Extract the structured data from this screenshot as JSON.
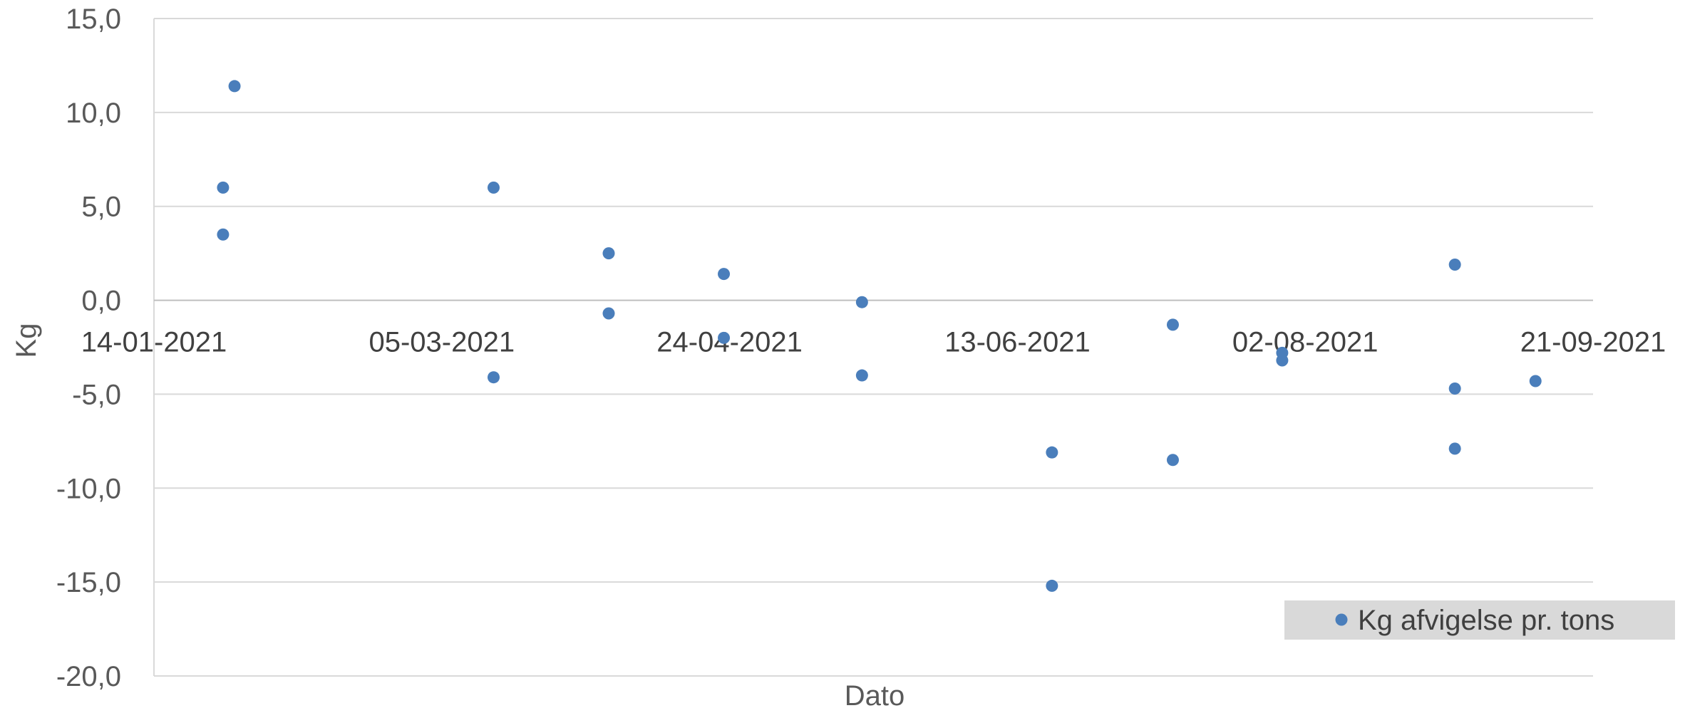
{
  "chart_data": {
    "type": "scatter",
    "xlabel": "Dato",
    "ylabel": "Kg",
    "xlim": [
      "14-01-2021",
      "21-09-2021"
    ],
    "ylim": [
      -20,
      15
    ],
    "x_ticks": [
      "14-01-2021",
      "05-03-2021",
      "24-04-2021",
      "13-06-2021",
      "02-08-2021",
      "21-09-2021"
    ],
    "y_ticks": [
      "15,0",
      "10,0",
      "5,0",
      "0,0",
      "-5,0",
      "-10,0",
      "-15,0",
      "-20,0"
    ],
    "grid": "horizontal",
    "legend_position": "bottom-right",
    "marker_color": "#4a7ebb",
    "series": [
      {
        "name": "Kg afvigelse pr. tons",
        "points": [
          {
            "x": "26-01-2021",
            "y": 6.0
          },
          {
            "x": "26-01-2021",
            "y": 3.5
          },
          {
            "x": "28-01-2021",
            "y": 11.4
          },
          {
            "x": "14-03-2021",
            "y": 6.0
          },
          {
            "x": "14-03-2021",
            "y": -4.1
          },
          {
            "x": "03-04-2021",
            "y": 2.5
          },
          {
            "x": "03-04-2021",
            "y": -0.7
          },
          {
            "x": "23-04-2021",
            "y": 1.4
          },
          {
            "x": "23-04-2021",
            "y": -2.0
          },
          {
            "x": "17-05-2021",
            "y": -0.1
          },
          {
            "x": "17-05-2021",
            "y": -4.0
          },
          {
            "x": "19-06-2021",
            "y": -8.1
          },
          {
            "x": "19-06-2021",
            "y": -15.2
          },
          {
            "x": "10-07-2021",
            "y": -1.3
          },
          {
            "x": "10-07-2021",
            "y": -8.5
          },
          {
            "x": "29-07-2021",
            "y": -2.8
          },
          {
            "x": "29-07-2021",
            "y": -3.2
          },
          {
            "x": "28-08-2021",
            "y": 1.9
          },
          {
            "x": "28-08-2021",
            "y": -4.7
          },
          {
            "x": "28-08-2021",
            "y": -7.9
          },
          {
            "x": "11-09-2021",
            "y": -4.3
          }
        ]
      }
    ]
  }
}
